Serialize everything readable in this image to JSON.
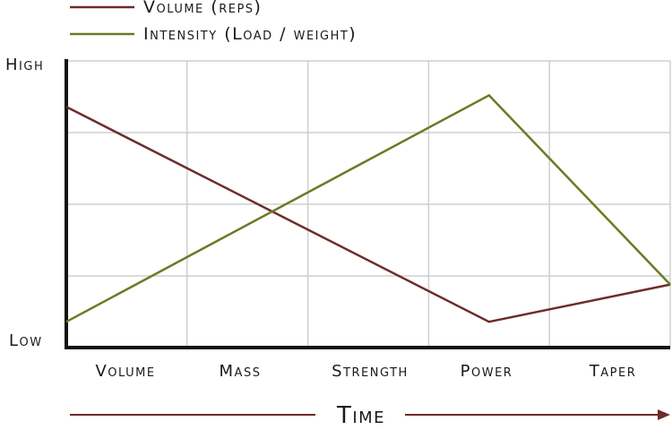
{
  "chart_data": {
    "type": "line",
    "categories": [
      "Volume",
      "Mass",
      "Strength",
      "Power",
      "Taper"
    ],
    "x": [
      0,
      1,
      2,
      3,
      4,
      5
    ],
    "series": [
      {
        "name": "Volume (reps)",
        "color": "#6e2b2b",
        "points": [
          [
            0,
            0.84
          ],
          [
            3.5,
            0.09
          ],
          [
            5,
            0.22
          ]
        ]
      },
      {
        "name": "Intensity (Load / weight)",
        "color": "#6b7a25",
        "points": [
          [
            0,
            0.09
          ],
          [
            3.5,
            0.88
          ],
          [
            5,
            0.22
          ]
        ]
      }
    ],
    "xlim": [
      0,
      5
    ],
    "ylim": [
      0,
      1
    ],
    "y_tick_labels": {
      "high": "High",
      "low": "Low"
    },
    "xlabel": "Time",
    "grid": true,
    "legend_position": "top-left"
  }
}
